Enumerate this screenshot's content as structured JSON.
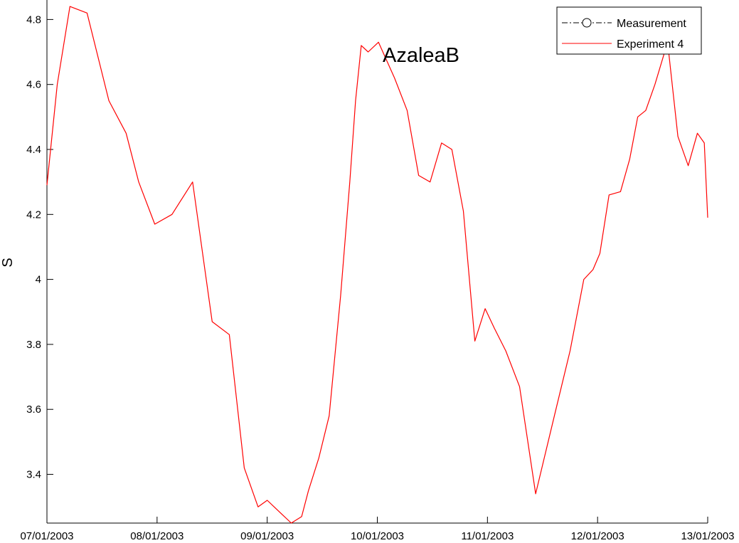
{
  "chart_data": {
    "type": "line",
    "title": "AzaleaB",
    "xlabel": "",
    "ylabel": "S",
    "xlim": [
      "07/01/2003",
      "13/01/2003"
    ],
    "ylim": [
      3.25,
      4.86
    ],
    "x_ticks": [
      "07/01/2003",
      "08/01/2003",
      "09/01/2003",
      "10/01/2003",
      "11/01/2003",
      "12/01/2003",
      "13/01/2003"
    ],
    "y_ticks": [
      "3.4",
      "3.6",
      "3.8",
      "4",
      "4.2",
      "4.4",
      "4.6",
      "4.8"
    ],
    "grid": false,
    "legend_position": "top-right",
    "legend": [
      "Measurement",
      "Experiment 4"
    ],
    "series": [
      {
        "name": "Measurement",
        "color": "#000000",
        "style": "dash-dot with circle markers",
        "x": [],
        "y": []
      },
      {
        "name": "Experiment 4",
        "color": "#ff0000",
        "style": "solid",
        "x": [
          "07/01/2003 00:00",
          "07/01/2003 02:15",
          "07/01/2003 05:00",
          "07/01/2003 08:45",
          "07/01/2003 13:30",
          "07/01/2003 17:15",
          "07/01/2003 20:00",
          "07/01/2003 23:30",
          "08/01/2003 03:15",
          "08/01/2003 07:45",
          "08/01/2003 12:00",
          "08/01/2003 15:45",
          "08/01/2003 19:00",
          "08/01/2003 22:00",
          "09/01/2003 00:00",
          "09/01/2003 03:00",
          "09/01/2003 05:15",
          "09/01/2003 07:30",
          "09/01/2003 09:00",
          "09/01/2003 11:15",
          "09/01/2003 13:30",
          "09/01/2003 16:00",
          "09/01/2003 18:00",
          "09/01/2003 19:15",
          "09/01/2003 20:30",
          "09/01/2003 22:00",
          "10/01/2003 00:15",
          "10/01/2003 03:45",
          "10/01/2003 06:30",
          "10/01/2003 09:00",
          "10/01/2003 11:30",
          "10/01/2003 14:00",
          "10/01/2003 16:15",
          "10/01/2003 18:45",
          "10/01/2003 21:15",
          "10/01/2003 23:30",
          "11/01/2003 01:30",
          "11/01/2003 04:00",
          "11/01/2003 07:00",
          "11/01/2003 10:30",
          "11/01/2003 14:45",
          "11/01/2003 18:00",
          "11/01/2003 21:00",
          "11/01/2003 23:00",
          "12/01/2003 00:30",
          "12/01/2003 02:30",
          "12/01/2003 05:00",
          "12/01/2003 07:00",
          "12/01/2003 08:45",
          "12/01/2003 10:30",
          "12/01/2003 12:30",
          "12/01/2003 15:15",
          "12/01/2003 17:30",
          "12/01/2003 19:45",
          "12/01/2003 21:45",
          "12/01/2003 23:15",
          "13/01/2003 00:00"
        ],
        "y": [
          4.29,
          4.6,
          4.84,
          4.82,
          4.55,
          4.45,
          4.3,
          4.17,
          4.2,
          4.3,
          3.87,
          3.83,
          3.42,
          3.3,
          3.32,
          3.28,
          3.25,
          3.27,
          3.35,
          3.45,
          3.58,
          3.95,
          4.3,
          4.55,
          4.72,
          4.7,
          4.73,
          4.62,
          4.52,
          4.32,
          4.3,
          4.42,
          4.4,
          4.21,
          3.81,
          3.91,
          3.85,
          3.78,
          3.67,
          3.34,
          3.59,
          3.78,
          4.0,
          4.03,
          4.08,
          4.26,
          4.27,
          4.37,
          4.5,
          4.52,
          4.6,
          4.73,
          4.44,
          4.35,
          4.45,
          4.42,
          4.19
        ]
      }
    ]
  }
}
